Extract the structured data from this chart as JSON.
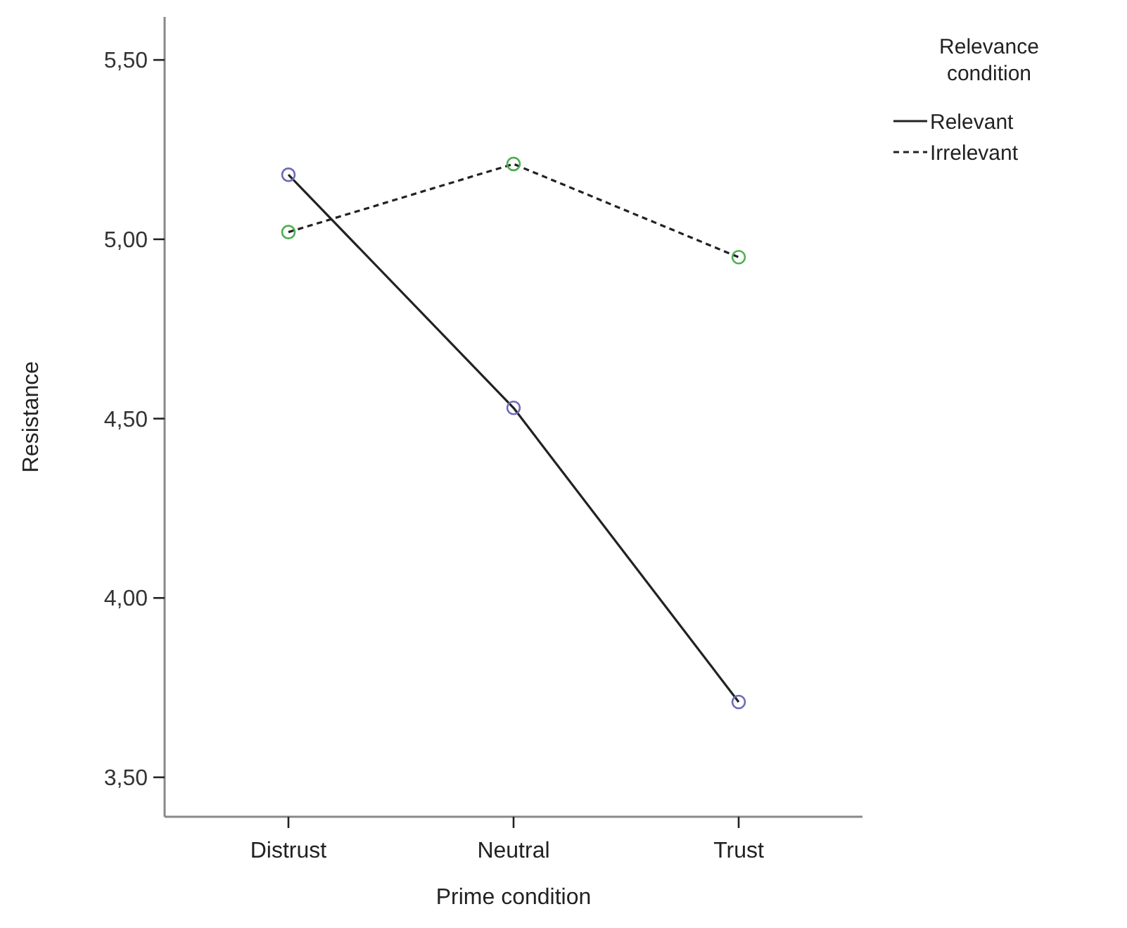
{
  "chart_data": {
    "type": "line",
    "xlabel": "Prime condition",
    "ylabel": "Resistance",
    "legend_title": "Relevance condition",
    "categories": [
      "Distrust",
      "Neutral",
      "Trust"
    ],
    "series": [
      {
        "name": "Relevant",
        "color": "#222222",
        "colors": [
          "#6a6ab8",
          "#6a6ab8",
          "#6a6ab8"
        ],
        "line_style": "solid",
        "values": [
          5.18,
          4.53,
          3.71
        ]
      },
      {
        "name": "Irrelevant",
        "color": "#222222",
        "colors": [
          "#4caf50",
          "#4caf50",
          "#4caf50"
        ],
        "line_style": "dashed",
        "values": [
          5.02,
          5.21,
          4.95
        ]
      }
    ],
    "ylim": [
      3.39,
      5.62
    ],
    "yticks": [
      {
        "value": 3.5,
        "label": "3,50"
      },
      {
        "value": 4,
        "label": "4,00"
      },
      {
        "value": 4.5,
        "label": "4,50"
      },
      {
        "value": 5,
        "label": "5,00"
      },
      {
        "value": 5.5,
        "label": "5,50"
      }
    ],
    "marker": "circle",
    "grid": false,
    "legend": "top right"
  }
}
